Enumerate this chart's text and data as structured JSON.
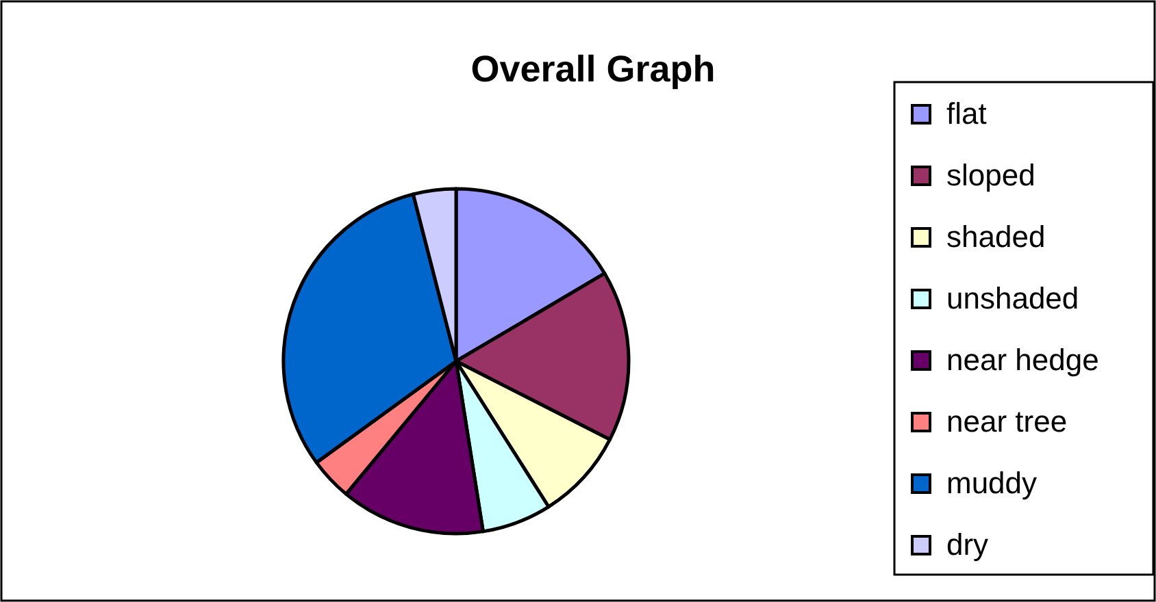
{
  "chart_data": {
    "type": "pie",
    "title": "Overall Graph",
    "categories": [
      "flat",
      "sloped",
      "shaded",
      "unshaded",
      "near hedge",
      "near tree",
      "muddy",
      "dry"
    ],
    "values": [
      16.5,
      16,
      8.5,
      6.5,
      13.5,
      4,
      31,
      4
    ],
    "colors": [
      "#9999ff",
      "#993366",
      "#ffffcc",
      "#ccffff",
      "#660066",
      "#ff8080",
      "#0066cc",
      "#ccccff"
    ],
    "legend": "right"
  }
}
